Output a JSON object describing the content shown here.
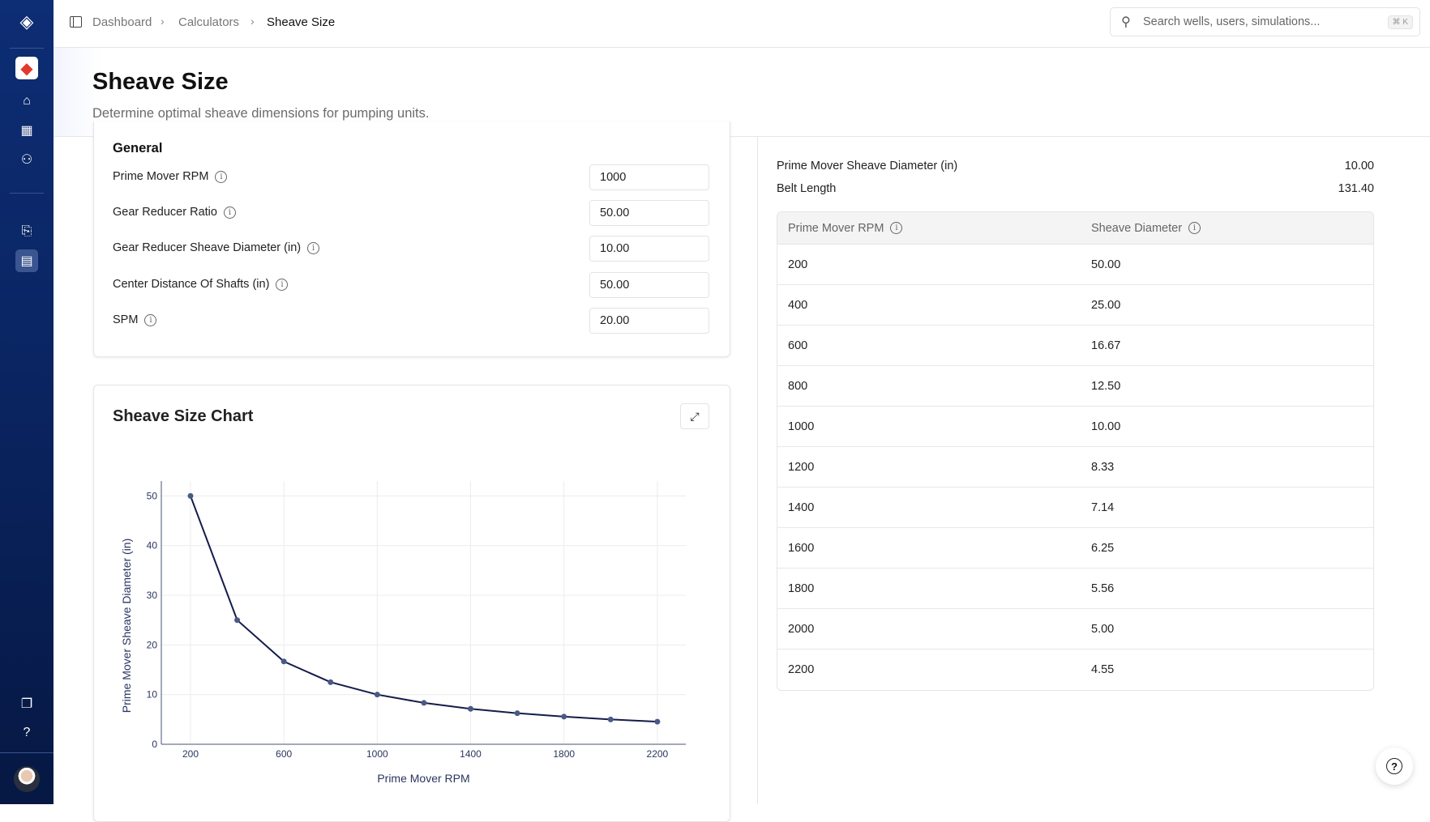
{
  "breadcrumb": [
    "Dashboard",
    "Calculators",
    "Sheave Size"
  ],
  "search": {
    "placeholder": "Search wells, users, simulations...",
    "shortcut": "⌘ K"
  },
  "page": {
    "title": "Sheave Size",
    "subtitle": "Determine optimal sheave dimensions for pumping units."
  },
  "general": {
    "heading": "General",
    "fields": [
      {
        "label": "Prime Mover RPM",
        "value": "1000"
      },
      {
        "label": "Gear Reducer Ratio",
        "value": "50.00"
      },
      {
        "label": "Gear Reducer Sheave Diameter (in)",
        "value": "10.00"
      },
      {
        "label": "Center Distance Of Shafts (in)",
        "value": "50.00"
      },
      {
        "label": "SPM",
        "value": "20.00"
      }
    ]
  },
  "results": [
    {
      "label": "Prime Mover Sheave Diameter (in)",
      "value": "10.00"
    },
    {
      "label": "Belt Length",
      "value": "131.40"
    }
  ],
  "table": {
    "headers": [
      "Prime Mover RPM",
      "Sheave Diameter"
    ],
    "rows": [
      [
        "200",
        "50.00"
      ],
      [
        "400",
        "25.00"
      ],
      [
        "600",
        "16.67"
      ],
      [
        "800",
        "12.50"
      ],
      [
        "1000",
        "10.00"
      ],
      [
        "1200",
        "8.33"
      ],
      [
        "1400",
        "7.14"
      ],
      [
        "1600",
        "6.25"
      ],
      [
        "1800",
        "5.56"
      ],
      [
        "2000",
        "5.00"
      ],
      [
        "2200",
        "4.55"
      ]
    ]
  },
  "chart_card": {
    "title": "Sheave Size Chart"
  },
  "chart_data": {
    "type": "line",
    "xlabel": "Prime Mover RPM",
    "ylabel": "Prime Mover Sheave Diameter (in)",
    "x": [
      200,
      400,
      600,
      800,
      1000,
      1200,
      1400,
      1600,
      1800,
      2000,
      2200
    ],
    "y": [
      50,
      25,
      16.67,
      12.5,
      10,
      8.33,
      7.14,
      6.25,
      5.56,
      5,
      4.55
    ],
    "xticks": [
      200,
      600,
      1000,
      1400,
      1800,
      2200
    ],
    "yticks": [
      0,
      10,
      20,
      30,
      40,
      50
    ],
    "xlim": [
      75,
      2322
    ],
    "ylim": [
      0,
      53
    ],
    "grid": true,
    "line_color": "#141c4a",
    "marker_color": "#4a5a86"
  },
  "colors": {
    "sidebar": "#0b2563",
    "accent_red": "#e03a2f"
  }
}
